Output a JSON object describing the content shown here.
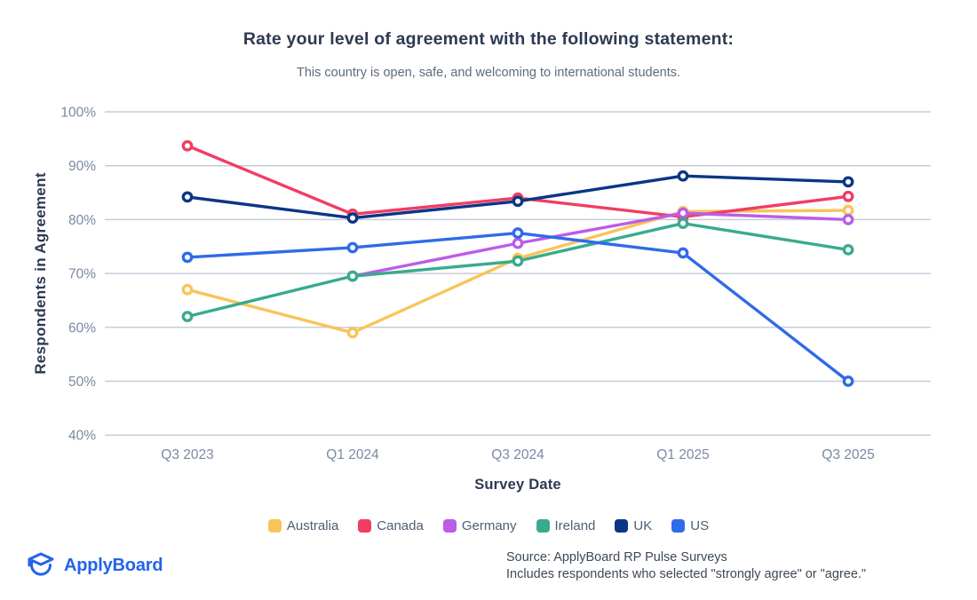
{
  "title": "Rate your level of agreement with the following statement:",
  "subtitle": "This country is open, safe, and welcoming to international students.",
  "chart_data": {
    "type": "line",
    "x": [
      "Q3 2023",
      "Q1 2024",
      "Q3 2024",
      "Q1 2025",
      "Q3 2025"
    ],
    "xlabel": "Survey Date",
    "ylabel": "Respondents in Agreement",
    "ylim": [
      40,
      100
    ],
    "yticks": [
      100,
      90,
      80,
      70,
      60,
      50,
      40
    ],
    "ytick_suffix": "%",
    "grid": "horizontal",
    "legend_position": "bottom",
    "series": [
      {
        "name": "Australia",
        "color": "#F8C45A",
        "values": [
          67,
          59,
          72.8,
          81.5,
          81.7
        ]
      },
      {
        "name": "Canada",
        "color": "#F03E63",
        "values": [
          93.7,
          81,
          84,
          80.5,
          84.3
        ]
      },
      {
        "name": "Germany",
        "color": "#BC5CE8",
        "values": [
          null,
          69.5,
          75.6,
          81.2,
          80
        ]
      },
      {
        "name": "Ireland",
        "color": "#3AAA8E",
        "values": [
          62,
          69.5,
          72.3,
          79.3,
          74.4
        ]
      },
      {
        "name": "UK",
        "color": "#0B3587",
        "values": [
          84.2,
          80.3,
          83.4,
          88.1,
          87
        ]
      },
      {
        "name": "US",
        "color": "#2F6BE8",
        "values": [
          73,
          74.8,
          77.5,
          73.8,
          50
        ]
      }
    ]
  },
  "theme": {
    "grid_color": "#c7ccd9",
    "tick_color": "#7c89a3",
    "axis_title_color": "#2d3a52",
    "brand_blue": "#2563eb"
  },
  "footer": {
    "logo_text": "ApplyBoard",
    "source_line1": "Source: ApplyBoard RP Pulse Surveys",
    "source_line2": "Includes respondents who selected \"strongly agree\" or \"agree.\""
  }
}
